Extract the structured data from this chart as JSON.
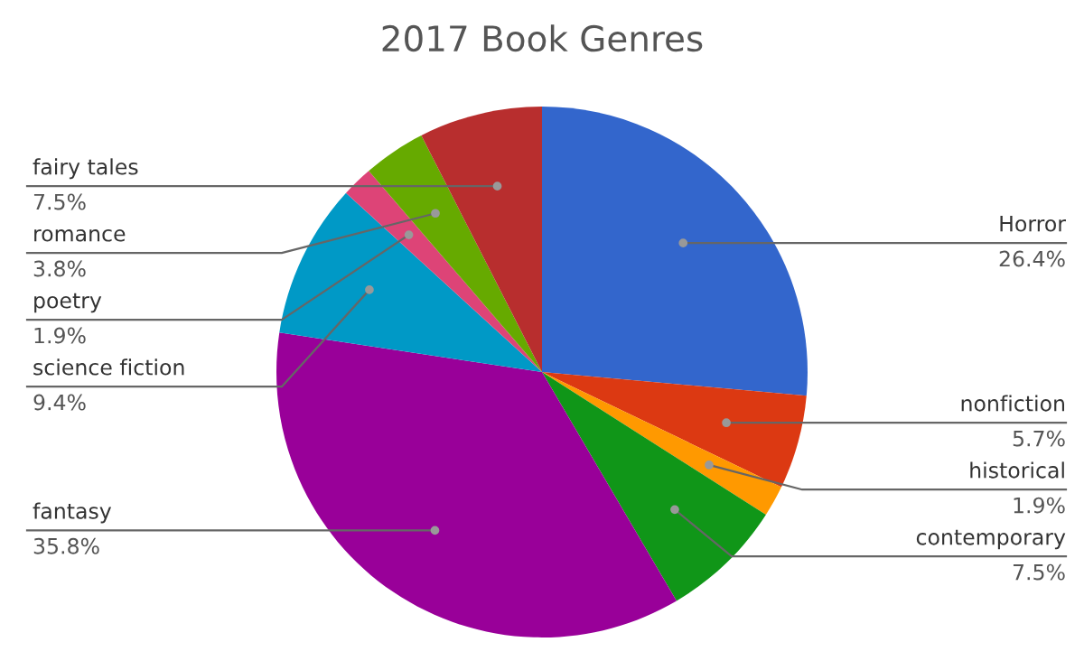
{
  "chart_data": {
    "type": "pie",
    "title": "2017 Book Genres",
    "categories": [
      "Horror",
      "nonfiction",
      "historical",
      "contemporary",
      "fantasy",
      "science fiction",
      "poetry",
      "romance",
      "fairy tales"
    ],
    "values": [
      26.4,
      5.7,
      1.9,
      7.5,
      35.8,
      9.4,
      1.9,
      3.8,
      7.5
    ],
    "colors": [
      "#3366cc",
      "#dc3912",
      "#ff9900",
      "#109618",
      "#990099",
      "#0099c6",
      "#dd4477",
      "#66aa00",
      "#b82e2e"
    ],
    "value_labels": [
      "26.4%",
      "5.7%",
      "1.9%",
      "7.5%",
      "35.8%",
      "9.4%",
      "1.9%",
      "3.8%",
      "7.5%"
    ]
  }
}
